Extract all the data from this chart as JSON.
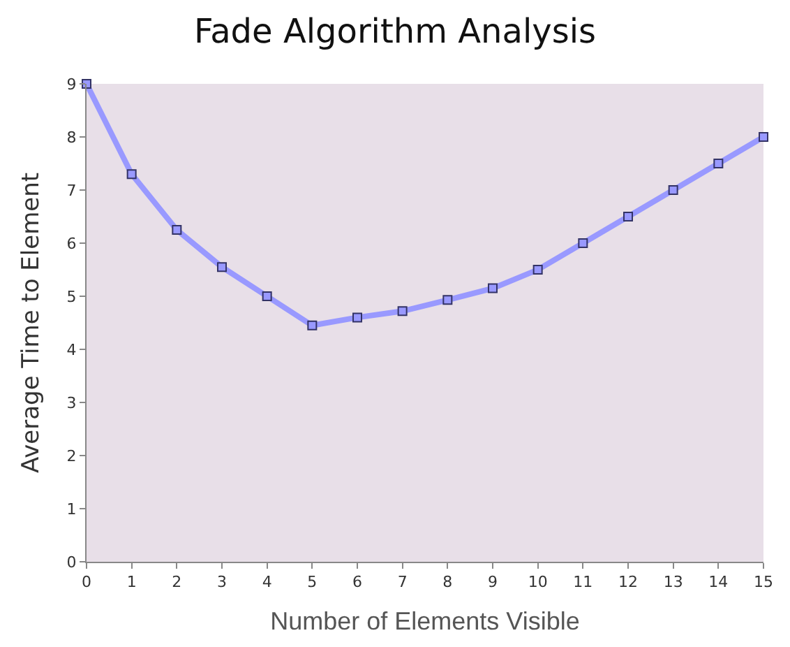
{
  "chart_data": {
    "type": "line",
    "title": "Fade Algorithm Analysis",
    "xlabel": "Number of Elements Visible",
    "ylabel": "Average Time to Element",
    "x": [
      0,
      1,
      2,
      3,
      4,
      5,
      6,
      7,
      8,
      9,
      10,
      11,
      12,
      13,
      14,
      15
    ],
    "series": [
      {
        "color": "#9999ff",
        "values": [
          9,
          7.3,
          6.25,
          5.55,
          5.0,
          4.45,
          4.6,
          4.72,
          4.93,
          5.15,
          5.5,
          6.0,
          6.5,
          7.0,
          7.5,
          8.0
        ]
      }
    ],
    "xlim": [
      0,
      15
    ],
    "xticks": [
      0,
      1,
      2,
      3,
      4,
      5,
      6,
      7,
      8,
      9,
      10,
      11,
      12,
      13,
      14,
      15
    ],
    "ylim": [
      0,
      9
    ],
    "yticks": [
      0,
      1,
      2,
      3,
      4,
      5,
      6,
      7,
      8,
      9
    ],
    "grid": false,
    "legend": false,
    "marker": "square",
    "line_style": "solid"
  }
}
